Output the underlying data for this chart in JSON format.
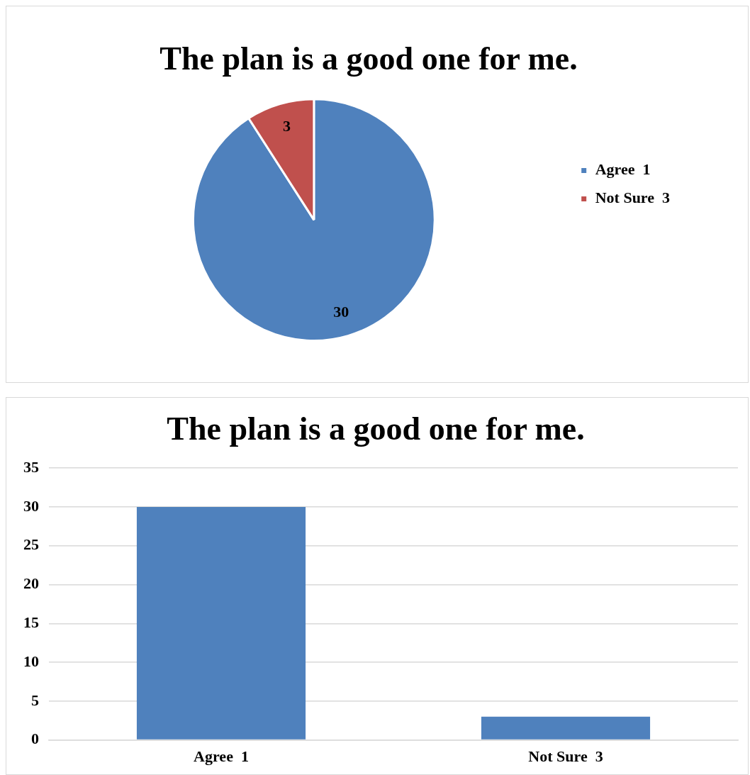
{
  "chart_data": [
    {
      "type": "pie",
      "title": "The plan is a good one for me.",
      "categories": [
        "Agree  1",
        "Not Sure  3"
      ],
      "values": [
        30,
        3
      ],
      "colors": [
        "#4f81bd",
        "#c0504d"
      ],
      "data_labels": true,
      "legend": "right"
    },
    {
      "type": "bar",
      "title": "The plan is a good one for me.",
      "categories": [
        "Agree  1",
        "Not Sure  3"
      ],
      "values": [
        30,
        3
      ],
      "color": "#4f81bd",
      "ylim": [
        0,
        35
      ],
      "yticks": [
        0,
        5,
        10,
        15,
        20,
        25,
        30,
        35
      ],
      "grid": "y",
      "legend": false
    }
  ]
}
